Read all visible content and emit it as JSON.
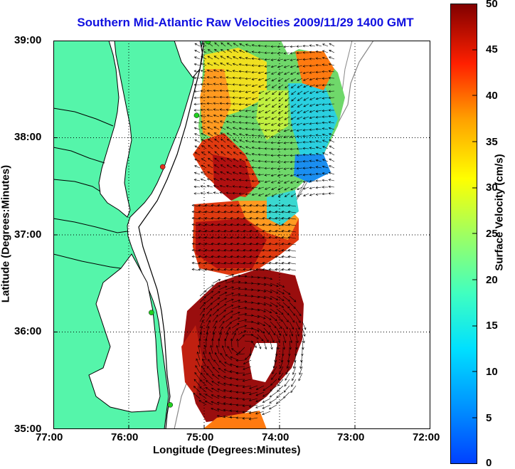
{
  "title": "Southern Mid-Atlantic Raw Velocities 2009/11/29 1400 GMT",
  "chart_data": {
    "type": "map",
    "xlabel": "Longitude (Degrees:Minutes)",
    "ylabel": "Latitude (Degrees:Minutes)",
    "x_ticks": [
      "77:00",
      "76:00",
      "75:00",
      "74:00",
      "73:00",
      "72:00"
    ],
    "x_tick_values": [
      -77,
      -76,
      -75,
      -74,
      -73,
      -72
    ],
    "y_ticks": [
      "39:00",
      "38:00",
      "37:00",
      "36:00",
      "35:00"
    ],
    "y_tick_values": [
      39,
      38,
      37,
      36,
      35
    ],
    "xlim": [
      -77,
      -72
    ],
    "ylim": [
      35,
      39
    ],
    "grid": true,
    "colorbar": {
      "label": "Surface Velocity (cm/s)",
      "range": [
        0,
        50
      ],
      "ticks": [
        "50",
        "45",
        "40",
        "35",
        "30",
        "25",
        "20",
        "15",
        "10",
        "5",
        "0"
      ]
    },
    "stations": [
      {
        "lon": -74.95,
        "lat": 38.99,
        "color": "#20d020"
      },
      {
        "lon": -75.1,
        "lat": 38.23,
        "color": "#20d020"
      },
      {
        "lon": -75.55,
        "lat": 37.7,
        "color": "#e03020"
      },
      {
        "lon": -75.7,
        "lat": 36.2,
        "color": "#20d020"
      },
      {
        "lon": -75.45,
        "lat": 35.25,
        "color": "#20d020"
      }
    ]
  },
  "colors": {
    "land": "#55f5aa",
    "title": "#1010e0"
  }
}
